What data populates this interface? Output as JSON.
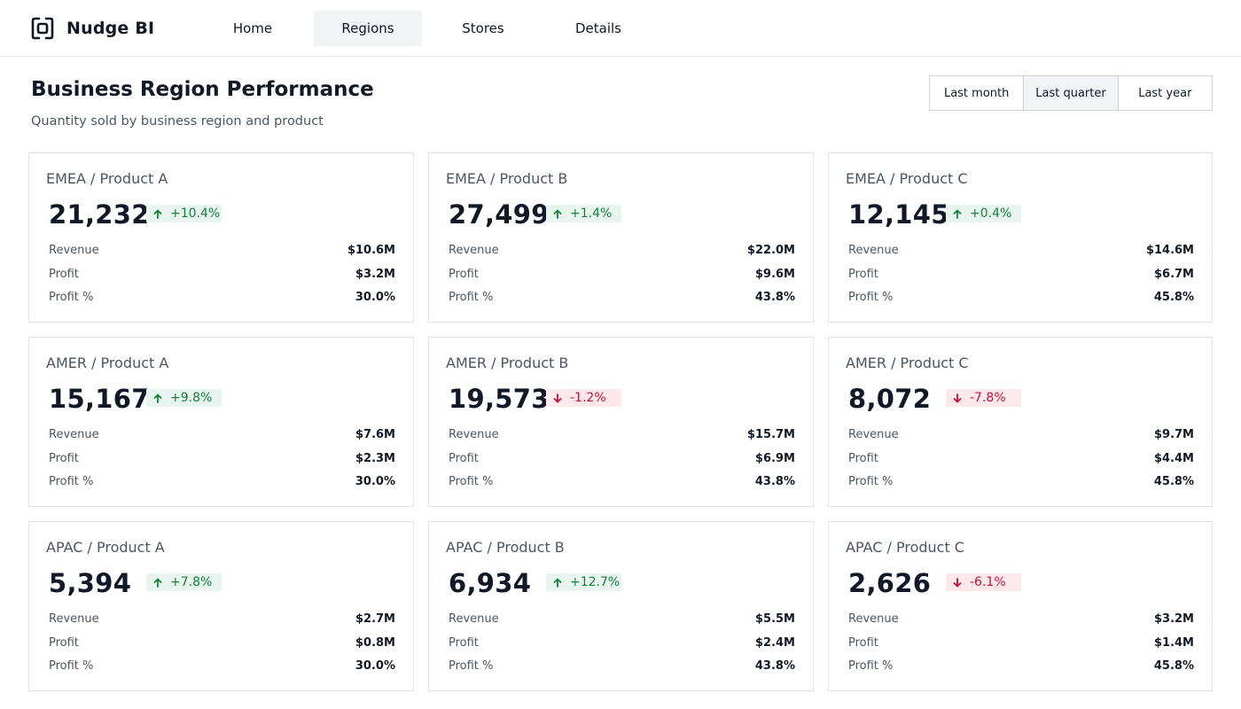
{
  "app": {
    "name": "Nudge BI",
    "logo_icon": "bracket-square-logo-icon"
  },
  "nav": {
    "items": [
      {
        "label": "Home",
        "active": false
      },
      {
        "label": "Regions",
        "active": true
      },
      {
        "label": "Stores",
        "active": false
      },
      {
        "label": "Details",
        "active": false
      }
    ]
  },
  "page": {
    "title": "Business Region Performance",
    "subtitle": "Quantity sold by business region and product"
  },
  "range": {
    "options": [
      {
        "label": "Last month",
        "active": false
      },
      {
        "label": "Last quarter",
        "active": true
      },
      {
        "label": "Last year",
        "active": false
      }
    ]
  },
  "metric_labels": {
    "revenue": "Revenue",
    "profit": "Profit",
    "profit_pct": "Profit %"
  },
  "colors": {
    "up": "#15803d",
    "down": "#be123c"
  },
  "cards": [
    {
      "title": "EMEA / Product A",
      "value": "21,232",
      "delta": "+10.4%",
      "trend": "up",
      "revenue": "$10.6M",
      "profit": "$3.2M",
      "profit_pct": "30.0%"
    },
    {
      "title": "EMEA / Product B",
      "value": "27,499",
      "delta": "+1.4%",
      "trend": "up",
      "revenue": "$22.0M",
      "profit": "$9.6M",
      "profit_pct": "43.8%"
    },
    {
      "title": "EMEA / Product C",
      "value": "12,145",
      "delta": "+0.4%",
      "trend": "up",
      "revenue": "$14.6M",
      "profit": "$6.7M",
      "profit_pct": "45.8%"
    },
    {
      "title": "AMER / Product A",
      "value": "15,167",
      "delta": "+9.8%",
      "trend": "up",
      "revenue": "$7.6M",
      "profit": "$2.3M",
      "profit_pct": "30.0%"
    },
    {
      "title": "AMER / Product B",
      "value": "19,573",
      "delta": "-1.2%",
      "trend": "down",
      "revenue": "$15.7M",
      "profit": "$6.9M",
      "profit_pct": "43.8%"
    },
    {
      "title": "AMER / Product C",
      "value": "8,072",
      "delta": "-7.8%",
      "trend": "down",
      "revenue": "$9.7M",
      "profit": "$4.4M",
      "profit_pct": "45.8%"
    },
    {
      "title": "APAC / Product A",
      "value": "5,394",
      "delta": "+7.8%",
      "trend": "up",
      "revenue": "$2.7M",
      "profit": "$0.8M",
      "profit_pct": "30.0%"
    },
    {
      "title": "APAC / Product B",
      "value": "6,934",
      "delta": "+12.7%",
      "trend": "up",
      "revenue": "$5.5M",
      "profit": "$2.4M",
      "profit_pct": "43.8%"
    },
    {
      "title": "APAC / Product C",
      "value": "2,626",
      "delta": "-6.1%",
      "trend": "down",
      "revenue": "$3.2M",
      "profit": "$1.4M",
      "profit_pct": "45.8%"
    }
  ]
}
